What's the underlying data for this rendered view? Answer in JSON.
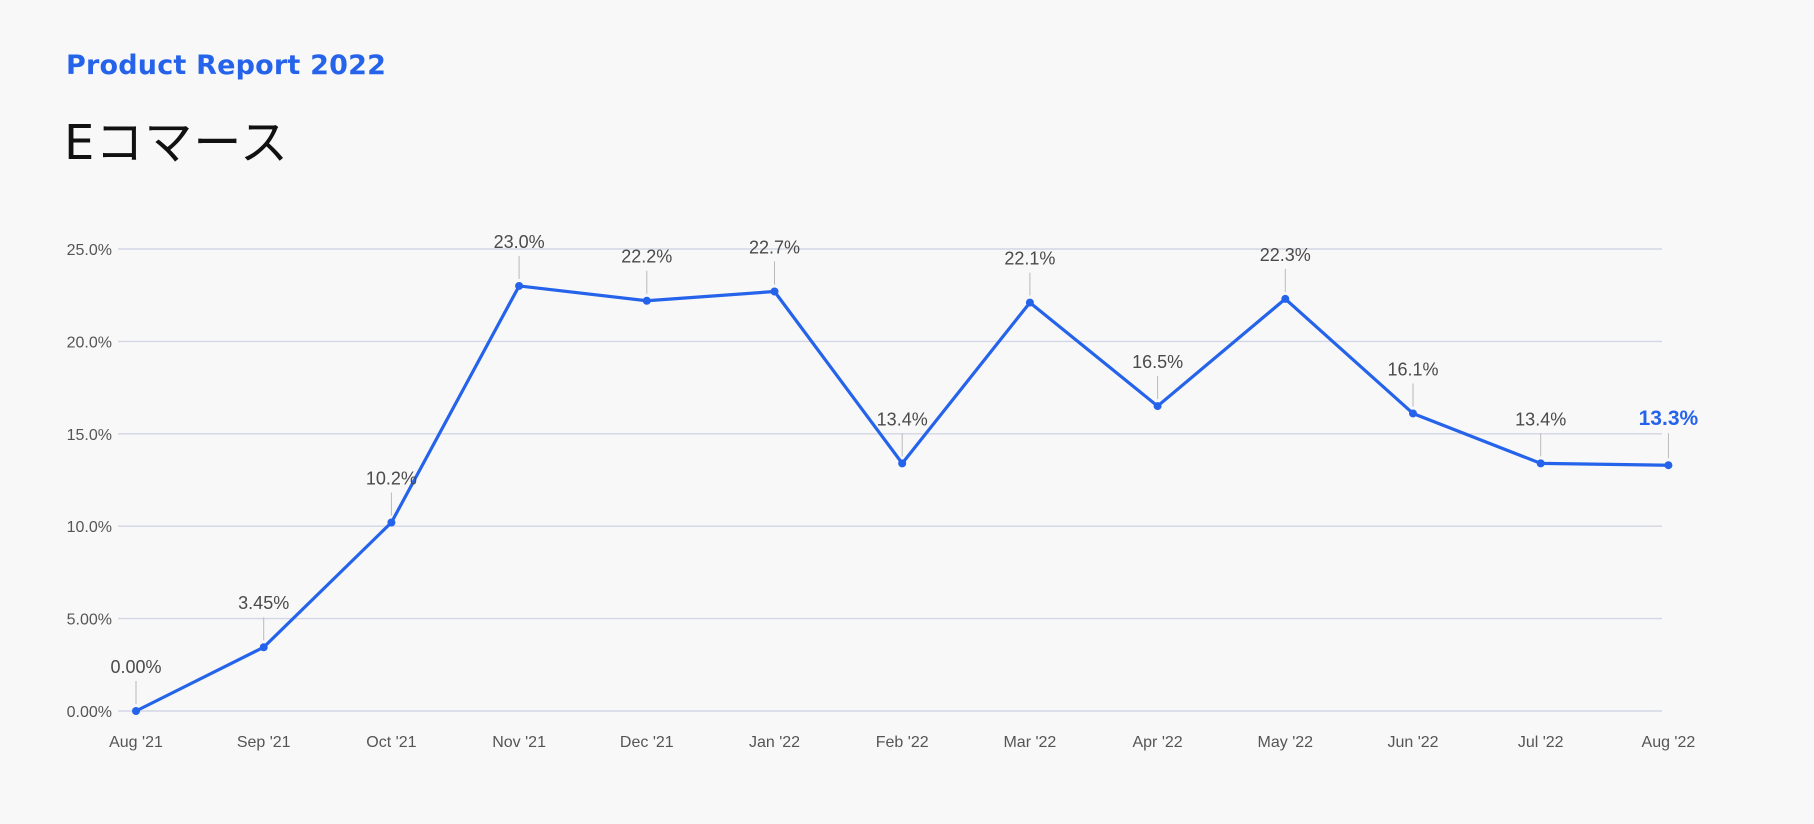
{
  "header": {
    "kicker": "Product Report 2022",
    "title": "Eコマース"
  },
  "colors": {
    "accent": "#2563eb",
    "grid": "#d3d6e4",
    "text": "#4a4a4a",
    "background": "#f8f8f8"
  },
  "chart_data": {
    "type": "line",
    "title": "Eコマース",
    "xlabel": "",
    "ylabel": "",
    "categories": [
      "Aug '21",
      "Sep '21",
      "Oct '21",
      "Nov '21",
      "Dec '21",
      "Jan '22",
      "Feb '22",
      "Mar '22",
      "Apr '22",
      "May '22",
      "Jun '22",
      "Jul '22",
      "Aug '22"
    ],
    "values": [
      0.0,
      3.45,
      10.2,
      23.0,
      22.2,
      22.7,
      13.4,
      22.1,
      16.5,
      22.3,
      16.1,
      13.4,
      13.3
    ],
    "data_labels": [
      "0.00%",
      "3.45%",
      "10.2%",
      "23.0%",
      "22.2%",
      "22.7%",
      "13.4%",
      "22.1%",
      "16.5%",
      "22.3%",
      "16.1%",
      "13.4%",
      "13.3%"
    ],
    "y_ticks": [
      0,
      5,
      10,
      15,
      20,
      25
    ],
    "y_tick_labels": [
      "0.00%",
      "5.00%",
      "10.0%",
      "15.0%",
      "20.0%",
      "25.0%"
    ],
    "ylim": [
      0,
      25
    ],
    "grid": true,
    "legend": "none",
    "highlight_last": true
  }
}
